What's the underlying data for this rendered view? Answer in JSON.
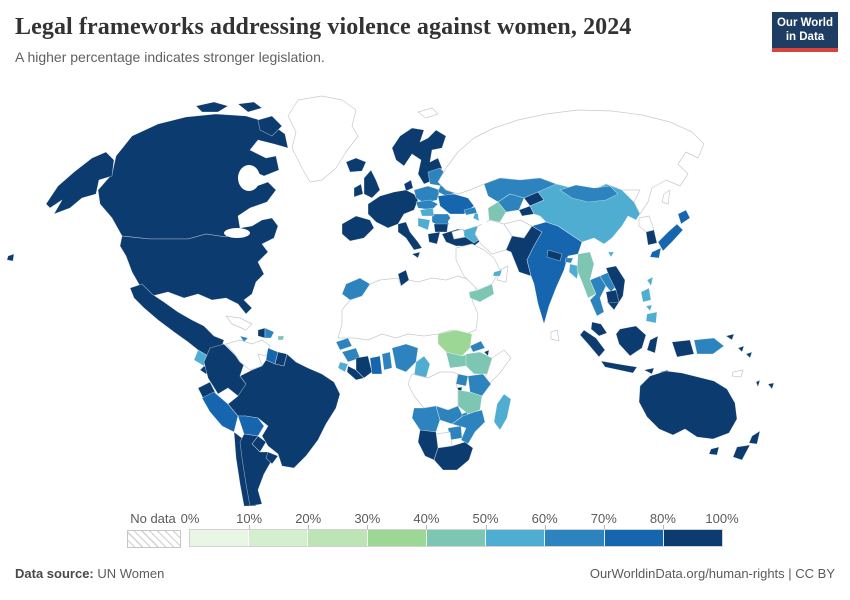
{
  "header": {
    "title": "Legal frameworks addressing violence against women, 2024",
    "subtitle": "A higher percentage indicates stronger legislation.",
    "logo": {
      "line1": "Our World",
      "line2": "in Data"
    }
  },
  "footer": {
    "source_label": "Data source:",
    "source_value": "UN Women",
    "right": "OurWorldinData.org/human-rights | CC BY"
  },
  "legend": {
    "no_data_label": "No data",
    "tick_labels": [
      "0%",
      "10%",
      "20%",
      "30%",
      "40%",
      "50%",
      "60%",
      "70%",
      "80%",
      "100%"
    ],
    "colors": [
      "#e9f6e5",
      "#d4efcd",
      "#bce4b4",
      "#9cd795",
      "#7cc6b3",
      "#4fadd2",
      "#2d83bd",
      "#1566ae",
      "#0c3c6f"
    ],
    "no_data_line_color": "#d9d9d9",
    "no_data_border_color": "#c6c6c6"
  },
  "chart_data": {
    "type": "choropleth",
    "title": "Legal frameworks addressing violence against women, 2024",
    "unit": "%",
    "bin_labels": [
      "0-10%",
      "10-20%",
      "20-30%",
      "30-40%",
      "40-50%",
      "50-60%",
      "60-70%",
      "70-80%",
      "80-100%"
    ],
    "note": "bin value = index into bin_labels/colors; 'no-data' = hatched",
    "regions": {
      "canada": 8,
      "usa": 8,
      "mexico": 8,
      "greenland": "no-data",
      "iceland": 8,
      "guatemala": 5,
      "el-salvador": 8,
      "honduras": 6,
      "nicaragua": 6,
      "costa-rica": 8,
      "panama": 8,
      "cuba": "no-data",
      "jamaica": 6,
      "haiti": 8,
      "dominican-republic": 6,
      "puerto-rico": 4,
      "trinidad-and-tobago": 8,
      "colombia": 8,
      "venezuela": "no-data",
      "guyana": 7,
      "suriname": 8,
      "ecuador": 8,
      "peru": 7,
      "brazil": 8,
      "bolivia": 7,
      "paraguay": 8,
      "chile": 8,
      "argentina": 8,
      "uruguay": 8,
      "scandinavia": 8,
      "denmark": 8,
      "united-kingdom": 8,
      "ireland": 8,
      "western-europe": 8,
      "iberia": 8,
      "italy": 8,
      "poland": 6,
      "czechia-slovakia": 6,
      "baltics": 6,
      "belarus": 6,
      "ukraine": 7,
      "romania": 6,
      "hungary": 5,
      "balkans": 5,
      "bulgaria": 8,
      "greece": 8,
      "turkey": 8,
      "svalbard": "no-data",
      "morocco": 6,
      "tunisia": 8,
      "sahara-states": "no-data",
      "senegal": 6,
      "guinea": 6,
      "sierra-leone": 5,
      "liberia": 8,
      "cote-divoire": 8,
      "ghana": 7,
      "togo-benin": 6,
      "nigeria": 6,
      "cameroon": 5,
      "sudan": 3,
      "south-sudan": 4,
      "eritrea": 6,
      "djibouti": 8,
      "ethiopia": 4,
      "somalia": "no-data",
      "kenya": 6,
      "uganda": 6,
      "rwanda-burundi": 8,
      "tanzania": 4,
      "congo-basin": "no-data",
      "angola": 6,
      "zambia": 6,
      "malawi": 6,
      "mozambique": 6,
      "zimbabwe": 6,
      "botswana": "no-data",
      "namibia": 8,
      "south-africa": 8,
      "madagascar": 5,
      "russia": "no-data",
      "kazakhstan": 6,
      "uzbekistan": 6,
      "turkmenistan": 4,
      "kyrgyzstan": 8,
      "tajikistan": 8,
      "georgia": 6,
      "azerbaijan": 5,
      "syria": "no-data",
      "iraq": 5,
      "iran": "no-data",
      "afghanistan": "no-data",
      "saudi-arabia": "no-data",
      "yemen": 4,
      "oman": "no-data",
      "uae": 5,
      "pakistan": 8,
      "india": 7,
      "nepal": 8,
      "bhutan": 6,
      "bangladesh": 5,
      "sri-lanka": "no-data",
      "china": 5,
      "mongolia": 6,
      "north-korea": "no-data",
      "south-korea": 8,
      "japan": 7,
      "taiwan": 5,
      "myanmar": 4,
      "thailand": 6,
      "laos": 6,
      "vietnam": 8,
      "cambodia": 8,
      "malaysia": 8,
      "indonesia": 8,
      "philippines": 5,
      "papua-new-guinea": 6,
      "pacific-islands": 8,
      "new-caledonia": "no-data",
      "australia": 8,
      "new-zealand": 8
    }
  }
}
